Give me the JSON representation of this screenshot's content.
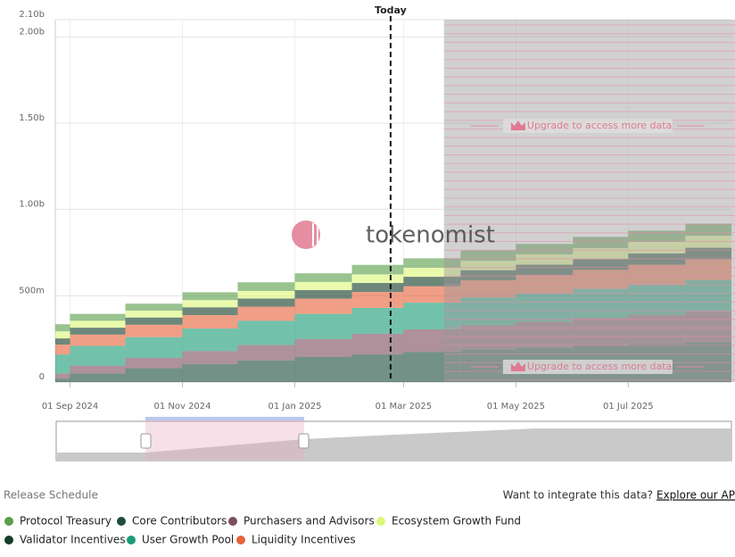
{
  "page": {
    "section_title": "Release Schedule",
    "integrate_text": "Want to integrate this data?",
    "integrate_link": "Explore our API",
    "watermark": "tokenomist"
  },
  "chart_data": {
    "type": "stacked-step-area",
    "x": [
      "2024-08-24",
      "2024-09-01",
      "2024-10-01",
      "2024-11-01",
      "2024-12-01",
      "2025-01-01",
      "2025-02-01",
      "2025-03-01",
      "2025-04-01",
      "2025-05-01",
      "2025-06-01",
      "2025-07-01",
      "2025-08-01"
    ],
    "xlim": [
      "2024-08-24",
      "2025-08-26"
    ],
    "xticks": [
      {
        "value": "2024-09-01",
        "label": "01 Sep 2024"
      },
      {
        "value": "2024-11-01",
        "label": "01 Nov 2024"
      },
      {
        "value": "2025-01-01",
        "label": "01 Jan 2025"
      },
      {
        "value": "2025-03-01",
        "label": "01 Mar 2025"
      },
      {
        "value": "2025-05-01",
        "label": "01 May 2025"
      },
      {
        "value": "2025-07-01",
        "label": "01 Jul 2025"
      }
    ],
    "ylim": [
      0,
      2100
    ],
    "yticks": [
      {
        "value": 0,
        "label": "0"
      },
      {
        "value": 500,
        "label": "500m"
      },
      {
        "value": 1000,
        "label": "1.00b"
      },
      {
        "value": 1500,
        "label": "1.50b"
      },
      {
        "value": 2000,
        "label": "2.00b"
      },
      {
        "value": 2100,
        "label": "2.10b"
      }
    ],
    "grid": true,
    "today": {
      "x": "2025-02-22",
      "label": "Today"
    },
    "locked": {
      "x": "2025-03-23",
      "label": "Upgrade to access more data"
    },
    "series": [
      {
        "name": "Protocol Treasury",
        "color": "#5a9e4b",
        "values": [
          41,
          40,
          40,
          45,
          50,
          50,
          55,
          55,
          60,
          60,
          65,
          65,
          70
        ]
      },
      {
        "name": "Core Contributors",
        "color": "#1d4d3b",
        "values": [
          20,
          50,
          80,
          105,
          125,
          145,
          160,
          175,
          190,
          200,
          210,
          220,
          230
        ]
      },
      {
        "name": "Purchasers and Advisors",
        "color": "#7d4e5e",
        "values": [
          30,
          45,
          60,
          75,
          90,
          105,
          120,
          130,
          140,
          150,
          160,
          170,
          180
        ]
      },
      {
        "name": "Ecosystem Growth Fund",
        "color": "#dcf77b",
        "values": [
          41,
          40,
          40,
          42,
          44,
          47,
          50,
          52,
          55,
          60,
          64,
          67,
          70
        ]
      },
      {
        "name": "Validator Incentives",
        "color": "#153d2a",
        "values": [
          36,
          40,
          42,
          45,
          47,
          50,
          52,
          55,
          58,
          60,
          62,
          65,
          68
        ]
      },
      {
        "name": "User Growth Pool",
        "color": "#1c9c78",
        "values": [
          110,
          115,
          120,
          130,
          140,
          145,
          150,
          155,
          160,
          165,
          170,
          175,
          180
        ]
      },
      {
        "name": "Liquidity Incentives",
        "color": "#e6623a",
        "values": [
          57,
          65,
          72,
          78,
          82,
          88,
          92,
          95,
          100,
          105,
          110,
          115,
          120
        ]
      }
    ]
  }
}
